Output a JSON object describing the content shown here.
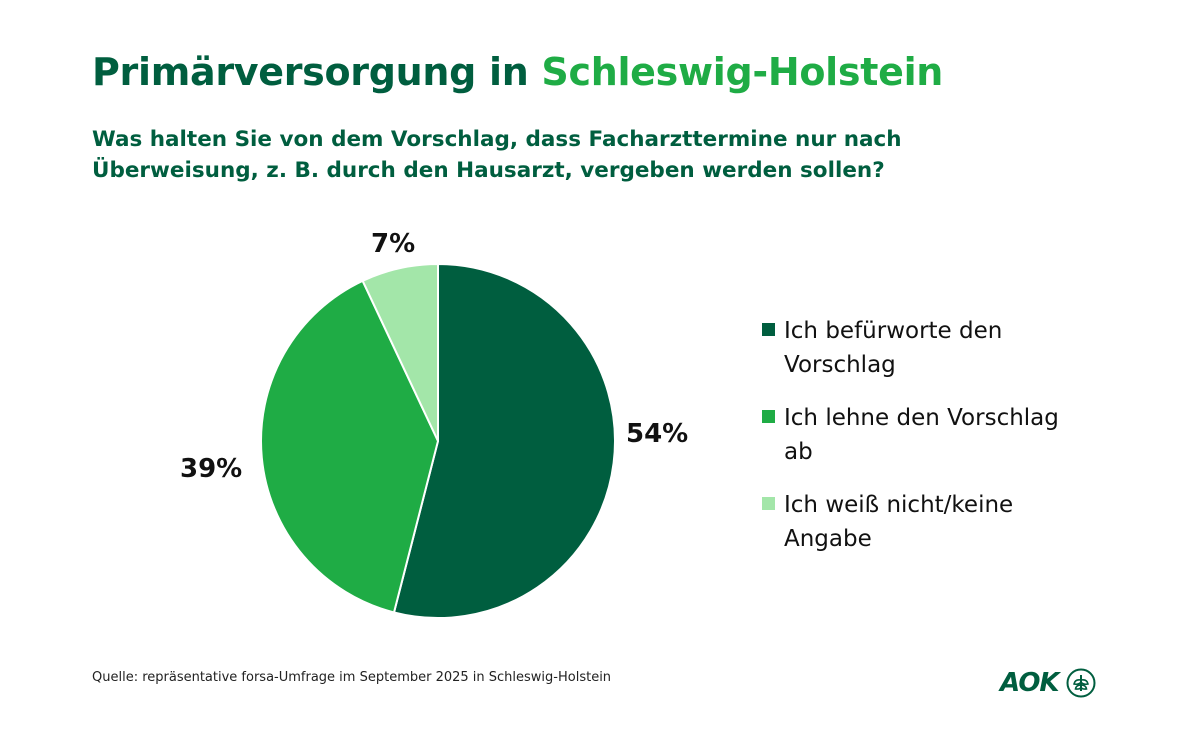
{
  "header": {
    "title_part1": "Primärversorgung in",
    "title_part2": "Schleswig-Holstein",
    "subtitle": "Was halten Sie von dem Vorschlag, dass Facharzttermine nur nach Überweisung, z. B. durch den Hausarzt, vergeben werden sollen?"
  },
  "chart_data": {
    "type": "pie",
    "title": "Primärversorgung in Schleswig-Holstein",
    "subtitle": "Was halten Sie von dem Vorschlag, dass Facharzttermine nur nach Überweisung, z. B. durch den Hausarzt, vergeben werden sollen?",
    "categories": [
      "Ich befürworte den Vorschlag",
      "Ich lehne den Vorschlag ab",
      "Ich weiß nicht/keine Angabe"
    ],
    "values": [
      54,
      39,
      7
    ],
    "labels": [
      "54%",
      "39%",
      "7%"
    ],
    "colors": [
      "#005e3f",
      "#1fac45",
      "#a3e6a9"
    ],
    "legend_position": "right"
  },
  "footer": {
    "source": "Quelle: repräsentative forsa-Umfrage im September 2025 in Schleswig-Holstein",
    "logo_text": "AOK"
  }
}
